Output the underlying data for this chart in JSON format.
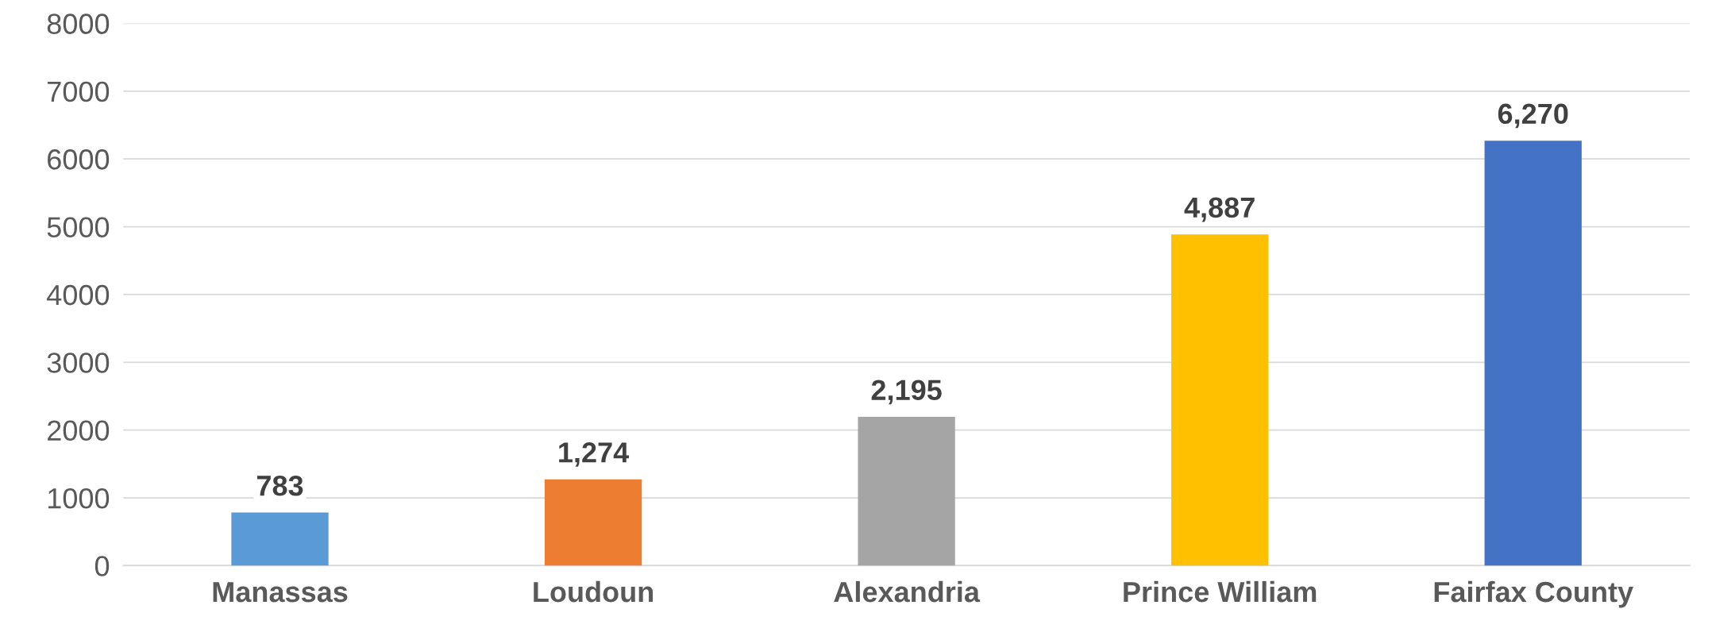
{
  "chart_data": {
    "type": "bar",
    "categories": [
      "Manassas",
      "Loudoun",
      "Alexandria",
      "Prince William",
      "Fairfax County"
    ],
    "values": [
      783,
      1274,
      2195,
      4887,
      6270
    ],
    "colors": [
      "#5b9bd5",
      "#ed7d31",
      "#a5a5a5",
      "#ffc000",
      "#4472c4"
    ],
    "value_labels": [
      "783",
      "1,274",
      "2,195",
      "4,887",
      "6,270"
    ],
    "ylim": [
      0,
      8000
    ],
    "yticks": [
      0,
      1000,
      2000,
      3000,
      4000,
      5000,
      6000,
      7000,
      8000
    ],
    "grid": "y",
    "legend": false
  }
}
